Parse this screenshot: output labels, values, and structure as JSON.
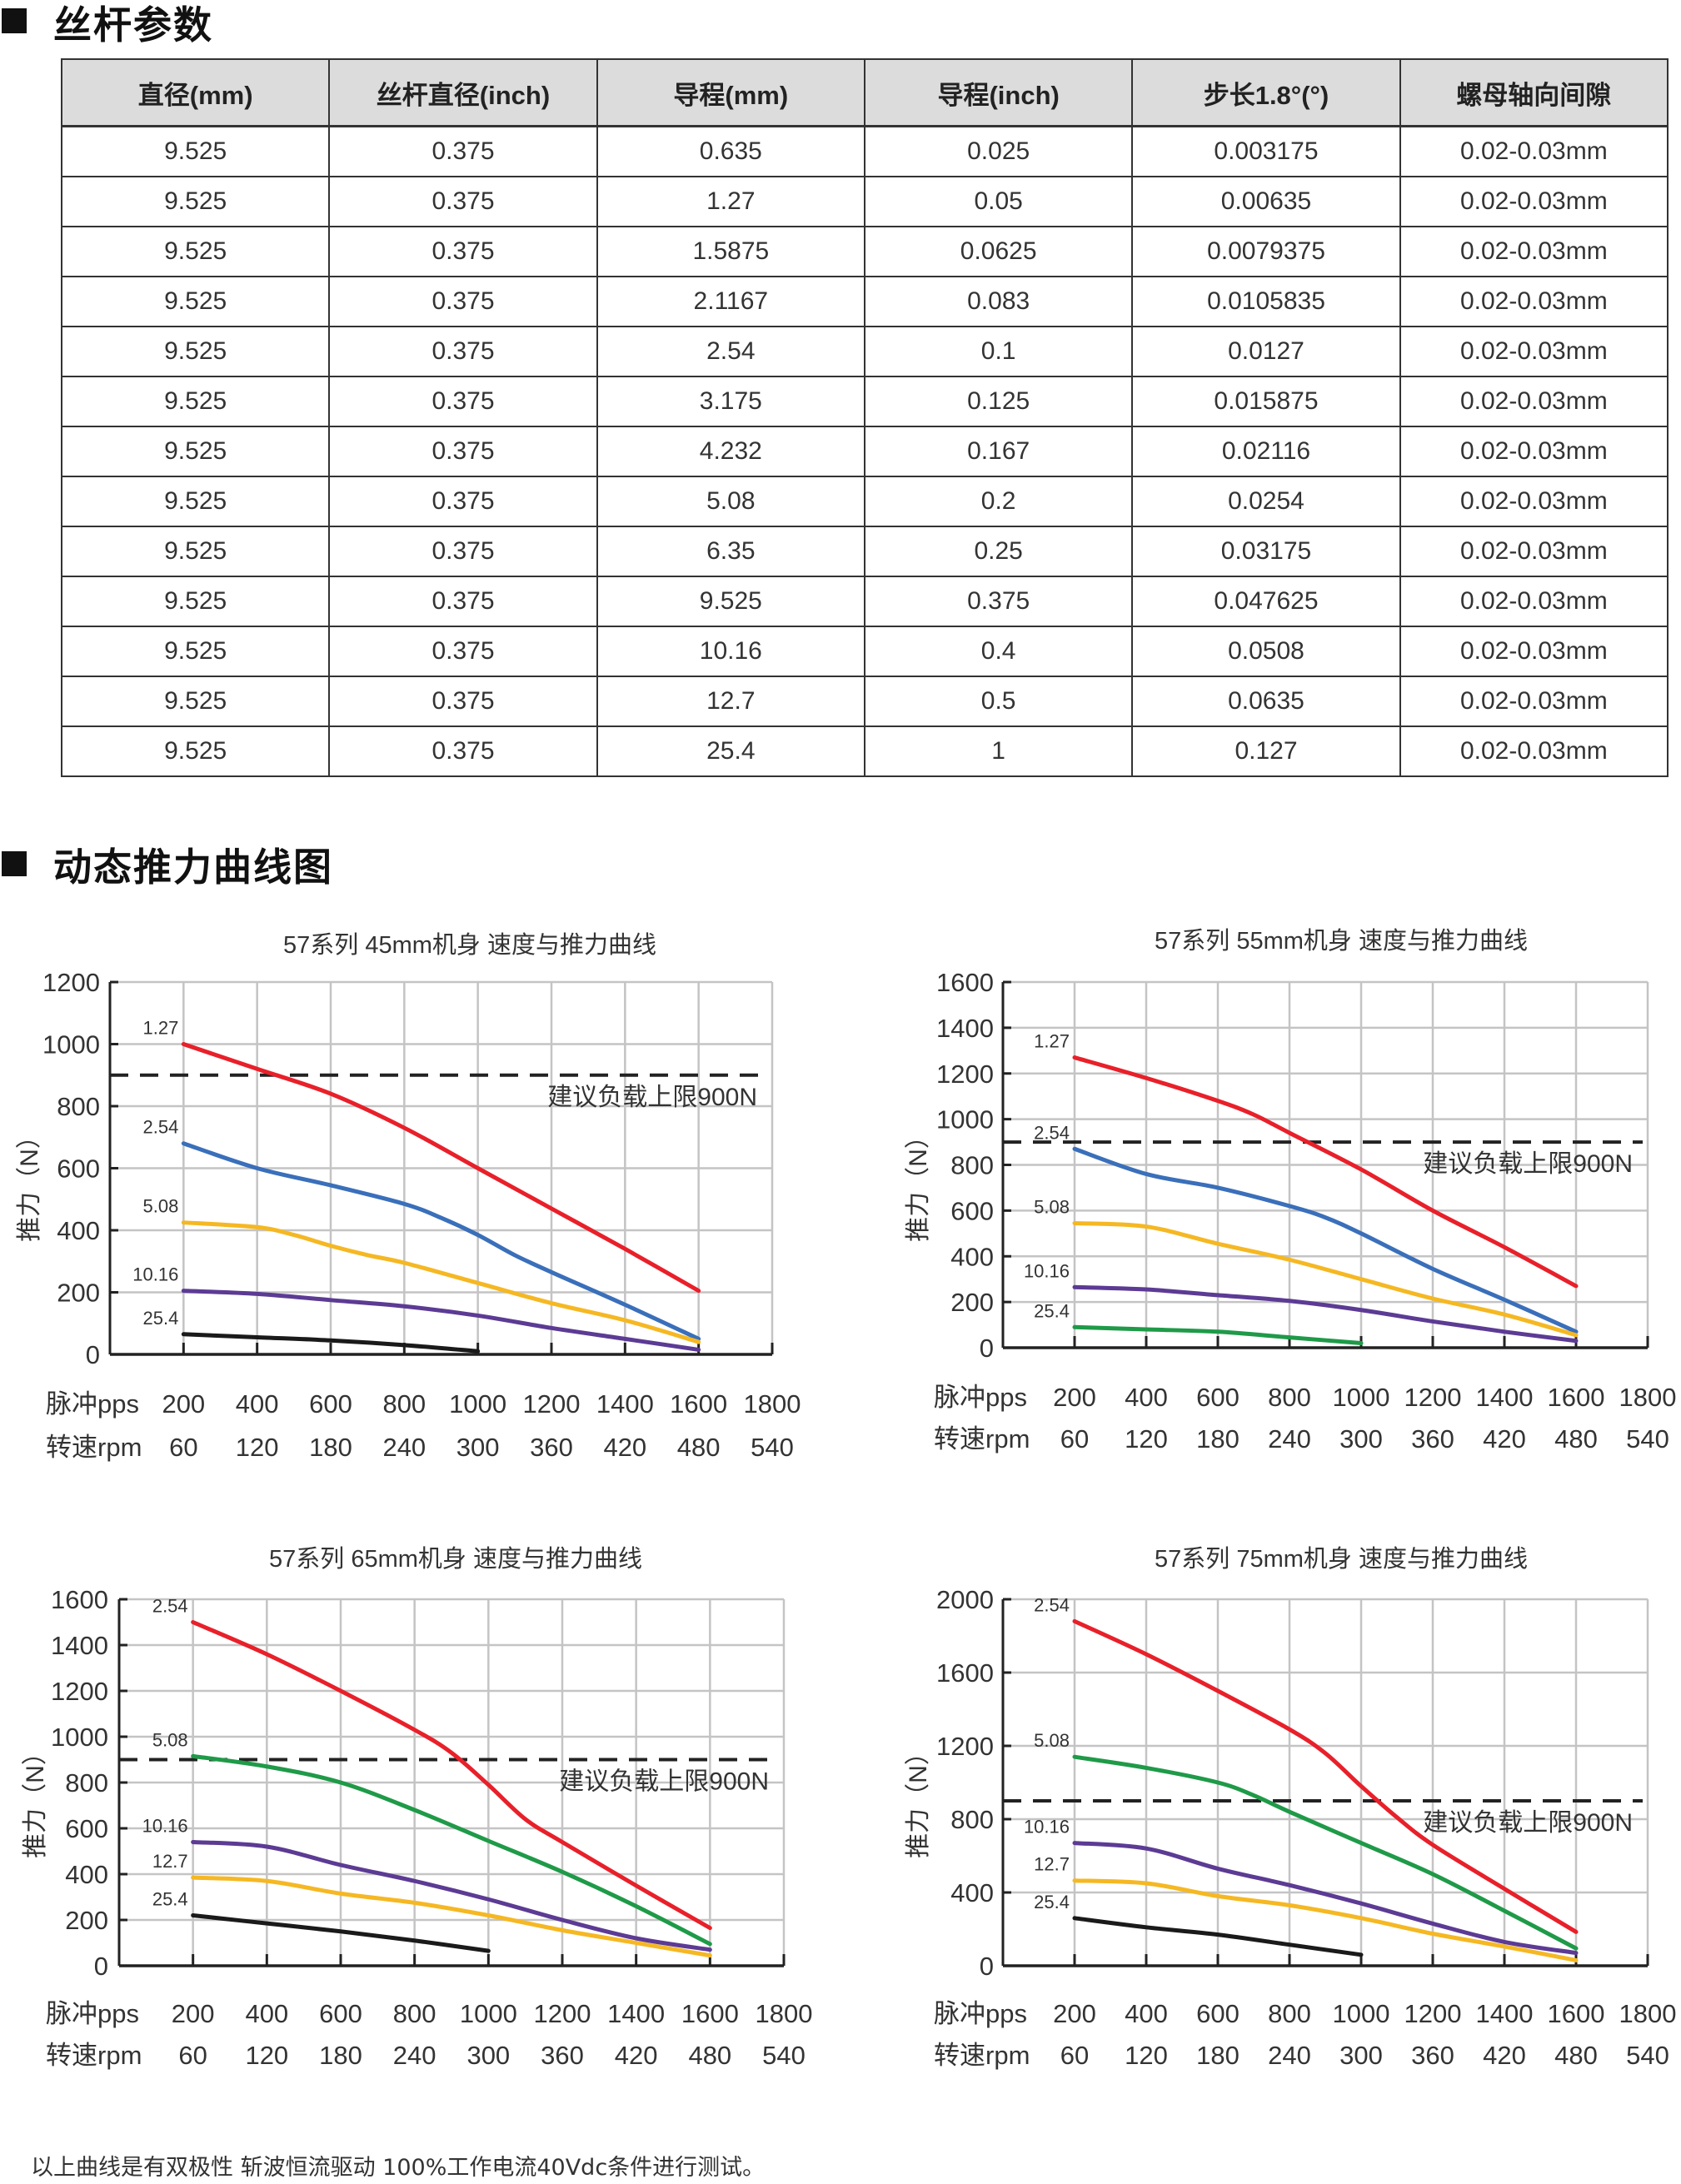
{
  "section_spec": {
    "title": "丝杆参数"
  },
  "spec_table": {
    "headers": [
      "直径(mm)",
      "丝杆直径(inch)",
      "导程(mm)",
      "导程(inch)",
      "步长1.8°(°)",
      "螺母轴向间隙"
    ],
    "rows": [
      [
        "9.525",
        "0.375",
        "0.635",
        "0.025",
        "0.003175",
        "0.02-0.03mm"
      ],
      [
        "9.525",
        "0.375",
        "1.27",
        "0.05",
        "0.00635",
        "0.02-0.03mm"
      ],
      [
        "9.525",
        "0.375",
        "1.5875",
        "0.0625",
        "0.0079375",
        "0.02-0.03mm"
      ],
      [
        "9.525",
        "0.375",
        "2.1167",
        "0.083",
        "0.0105835",
        "0.02-0.03mm"
      ],
      [
        "9.525",
        "0.375",
        "2.54",
        "0.1",
        "0.0127",
        "0.02-0.03mm"
      ],
      [
        "9.525",
        "0.375",
        "3.175",
        "0.125",
        "0.015875",
        "0.02-0.03mm"
      ],
      [
        "9.525",
        "0.375",
        "4.232",
        "0.167",
        "0.02116",
        "0.02-0.03mm"
      ],
      [
        "9.525",
        "0.375",
        "5.08",
        "0.2",
        "0.0254",
        "0.02-0.03mm"
      ],
      [
        "9.525",
        "0.375",
        "6.35",
        "0.25",
        "0.03175",
        "0.02-0.03mm"
      ],
      [
        "9.525",
        "0.375",
        "9.525",
        "0.375",
        "0.047625",
        "0.02-0.03mm"
      ],
      [
        "9.525",
        "0.375",
        "10.16",
        "0.4",
        "0.0508",
        "0.02-0.03mm"
      ],
      [
        "9.525",
        "0.375",
        "12.7",
        "0.5",
        "0.0635",
        "0.02-0.03mm"
      ],
      [
        "9.525",
        "0.375",
        "25.4",
        "1",
        "0.127",
        "0.02-0.03mm"
      ]
    ]
  },
  "section_curves": {
    "title": "动态推力曲线图"
  },
  "footnote": "以上曲线是有双极性 斩波恒流驱动 100%工作电流40Vdc条件进行测试。",
  "chart_data": [
    {
      "type": "line",
      "title": "57系列 45mm机身 速度与推力曲线",
      "ylabel": "推力（N）",
      "xlabel_rows": [
        "脉冲pps",
        "转速rpm"
      ],
      "xlim": [
        0,
        1800
      ],
      "xticks": [
        200,
        400,
        600,
        800,
        1000,
        1200,
        1400,
        1600,
        1800
      ],
      "xtick_labels_pps": [
        "200",
        "400",
        "600",
        "800",
        "1000",
        "1200",
        "1400",
        "1600",
        "1800"
      ],
      "xtick_labels_rpm": [
        "60",
        "120",
        "180",
        "240",
        "300",
        "360",
        "420",
        "480",
        "540"
      ],
      "ylim": [
        0,
        1200
      ],
      "yticks": [
        0,
        200,
        400,
        600,
        800,
        1000,
        1200
      ],
      "ytick_labels": [
        "0",
        "200",
        "400",
        "600",
        "800",
        "1000",
        "1200"
      ],
      "grid": true,
      "reference_line": {
        "value": 900,
        "label": "建议负载上限900N"
      },
      "series": [
        {
          "name": "1.27",
          "color": "#e8202a",
          "x": [
            200,
            400,
            600,
            800,
            1000,
            1200,
            1400,
            1600
          ],
          "y": [
            1000,
            920,
            840,
            730,
            600,
            470,
            340,
            205
          ]
        },
        {
          "name": "2.54",
          "color": "#3a6fba",
          "x": [
            200,
            400,
            600,
            800,
            900,
            1000,
            1100,
            1200,
            1400,
            1600
          ],
          "y": [
            680,
            600,
            545,
            485,
            440,
            385,
            320,
            265,
            160,
            50
          ]
        },
        {
          "name": "5.08",
          "color": "#f5b823",
          "x": [
            200,
            400,
            500,
            600,
            700,
            800,
            1000,
            1200,
            1400,
            1600
          ],
          "y": [
            425,
            410,
            385,
            350,
            320,
            295,
            230,
            165,
            110,
            40
          ]
        },
        {
          "name": "10.16",
          "color": "#5c3b94",
          "x": [
            200,
            400,
            600,
            800,
            1000,
            1200,
            1400,
            1600
          ],
          "y": [
            205,
            195,
            175,
            155,
            125,
            85,
            50,
            15
          ]
        },
        {
          "name": "25.4",
          "color": "#1a1a1a",
          "x": [
            200,
            400,
            600,
            800,
            1000
          ],
          "y": [
            65,
            55,
            45,
            30,
            10
          ]
        }
      ]
    },
    {
      "type": "line",
      "title": "57系列 55mm机身 速度与推力曲线",
      "ylabel": "推力（N）",
      "xlabel_rows": [
        "脉冲pps",
        "转速rpm"
      ],
      "xlim": [
        0,
        1800
      ],
      "xticks": [
        200,
        400,
        600,
        800,
        1000,
        1200,
        1400,
        1600,
        1800
      ],
      "xtick_labels_pps": [
        "200",
        "400",
        "600",
        "800",
        "1000",
        "1200",
        "1400",
        "1600",
        "1800"
      ],
      "xtick_labels_rpm": [
        "60",
        "120",
        "180",
        "240",
        "300",
        "360",
        "420",
        "480",
        "540"
      ],
      "ylim": [
        0,
        1600
      ],
      "yticks": [
        0,
        200,
        400,
        600,
        800,
        1000,
        1200,
        1400,
        1600
      ],
      "ytick_labels": [
        "0",
        "200",
        "400",
        "600",
        "800",
        "1000",
        "1200",
        "1400",
        "1600"
      ],
      "grid": true,
      "reference_line": {
        "value": 900,
        "label": "建议负载上限900N"
      },
      "series": [
        {
          "name": "1.27",
          "color": "#e8202a",
          "x": [
            200,
            400,
            600,
            700,
            800,
            1000,
            1200,
            1400,
            1600
          ],
          "y": [
            1270,
            1180,
            1080,
            1020,
            940,
            780,
            600,
            440,
            270
          ]
        },
        {
          "name": "2.54",
          "color": "#3a6fba",
          "x": [
            200,
            400,
            600,
            800,
            900,
            1000,
            1200,
            1400,
            1600
          ],
          "y": [
            870,
            760,
            700,
            620,
            570,
            500,
            345,
            210,
            70
          ]
        },
        {
          "name": "5.08",
          "color": "#f5b823",
          "x": [
            200,
            400,
            600,
            800,
            1000,
            1200,
            1400,
            1600
          ],
          "y": [
            545,
            530,
            455,
            385,
            300,
            215,
            145,
            55
          ]
        },
        {
          "name": "10.16",
          "color": "#5c3b94",
          "x": [
            200,
            400,
            600,
            800,
            1000,
            1200,
            1400,
            1600
          ],
          "y": [
            265,
            255,
            230,
            205,
            165,
            115,
            70,
            30
          ]
        },
        {
          "name": "25.4",
          "color": "#1f9a48",
          "x": [
            200,
            400,
            600,
            800,
            1000
          ],
          "y": [
            90,
            80,
            70,
            45,
            20
          ]
        }
      ]
    },
    {
      "type": "line",
      "title": "57系列 65mm机身 速度与推力曲线",
      "ylabel": "推力（N）",
      "xlabel_rows": [
        "脉冲pps",
        "转速rpm"
      ],
      "xlim": [
        0,
        1800
      ],
      "xticks": [
        200,
        400,
        600,
        800,
        1000,
        1200,
        1400,
        1600,
        1800
      ],
      "xtick_labels_pps": [
        "200",
        "400",
        "600",
        "800",
        "1000",
        "1200",
        "1400",
        "1600",
        "1800"
      ],
      "xtick_labels_rpm": [
        "60",
        "120",
        "180",
        "240",
        "300",
        "360",
        "420",
        "480",
        "540"
      ],
      "ylim": [
        0,
        1600
      ],
      "yticks": [
        0,
        200,
        400,
        600,
        800,
        1000,
        1200,
        1400,
        1600
      ],
      "ytick_labels": [
        "0",
        "200",
        "400",
        "600",
        "800",
        "1000",
        "1200",
        "1400",
        "1600"
      ],
      "grid": true,
      "reference_line": {
        "value": 900,
        "label": "建议负载上限900N"
      },
      "series": [
        {
          "name": "2.54",
          "color": "#e8202a",
          "x": [
            200,
            400,
            600,
            800,
            900,
            1000,
            1100,
            1200,
            1400,
            1600
          ],
          "y": [
            1500,
            1360,
            1200,
            1030,
            930,
            790,
            640,
            540,
            350,
            165
          ]
        },
        {
          "name": "5.08",
          "color": "#1f9a48",
          "x": [
            200,
            400,
            600,
            800,
            1000,
            1200,
            1400,
            1600
          ],
          "y": [
            915,
            870,
            800,
            680,
            545,
            410,
            260,
            95
          ]
        },
        {
          "name": "10.16",
          "color": "#5c3b94",
          "x": [
            200,
            400,
            600,
            800,
            1000,
            1200,
            1400,
            1600
          ],
          "y": [
            540,
            520,
            440,
            370,
            290,
            200,
            120,
            70
          ]
        },
        {
          "name": "12.7",
          "color": "#f5b823",
          "x": [
            200,
            400,
            600,
            800,
            1000,
            1200,
            1400,
            1600
          ],
          "y": [
            385,
            370,
            315,
            275,
            220,
            155,
            100,
            45
          ]
        },
        {
          "name": "25.4",
          "color": "#1a1a1a",
          "x": [
            200,
            400,
            600,
            800,
            1000
          ],
          "y": [
            220,
            185,
            150,
            110,
            65
          ]
        }
      ]
    },
    {
      "type": "line",
      "title": "57系列 75mm机身 速度与推力曲线",
      "ylabel": "推力（N）",
      "xlabel_rows": [
        "脉冲pps",
        "转速rpm"
      ],
      "xlim": [
        0,
        1800
      ],
      "xticks": [
        200,
        400,
        600,
        800,
        1000,
        1200,
        1400,
        1600,
        1800
      ],
      "xtick_labels_pps": [
        "200",
        "400",
        "600",
        "800",
        "1000",
        "1200",
        "1400",
        "1600",
        "1800"
      ],
      "xtick_labels_rpm": [
        "60",
        "120",
        "180",
        "240",
        "300",
        "360",
        "420",
        "480",
        "540"
      ],
      "ylim": [
        0,
        2000
      ],
      "yticks": [
        0,
        400,
        800,
        1200,
        1600,
        2000
      ],
      "ytick_labels": [
        "0",
        "400",
        "800",
        "1200",
        "1600",
        "2000"
      ],
      "grid": true,
      "reference_line": {
        "value": 900,
        "label": "建议负载上限900N"
      },
      "series": [
        {
          "name": "2.54",
          "color": "#e8202a",
          "x": [
            200,
            400,
            600,
            800,
            900,
            1000,
            1100,
            1200,
            1400,
            1600
          ],
          "y": [
            1880,
            1700,
            1500,
            1290,
            1160,
            980,
            810,
            660,
            420,
            185
          ]
        },
        {
          "name": "5.08",
          "color": "#1f9a48",
          "x": [
            200,
            400,
            600,
            700,
            800,
            1000,
            1200,
            1400,
            1600
          ],
          "y": [
            1140,
            1080,
            1000,
            930,
            840,
            670,
            500,
            300,
            95
          ]
        },
        {
          "name": "10.16",
          "color": "#5c3b94",
          "x": [
            200,
            400,
            600,
            800,
            1000,
            1200,
            1400,
            1600
          ],
          "y": [
            670,
            640,
            530,
            440,
            340,
            230,
            130,
            70
          ]
        },
        {
          "name": "12.7",
          "color": "#f5b823",
          "x": [
            200,
            400,
            600,
            800,
            1000,
            1200,
            1400,
            1600
          ],
          "y": [
            465,
            450,
            380,
            330,
            260,
            175,
            105,
            30
          ]
        },
        {
          "name": "25.4",
          "color": "#1a1a1a",
          "x": [
            200,
            400,
            600,
            800,
            1000
          ],
          "y": [
            260,
            210,
            170,
            115,
            60
          ]
        }
      ]
    }
  ]
}
